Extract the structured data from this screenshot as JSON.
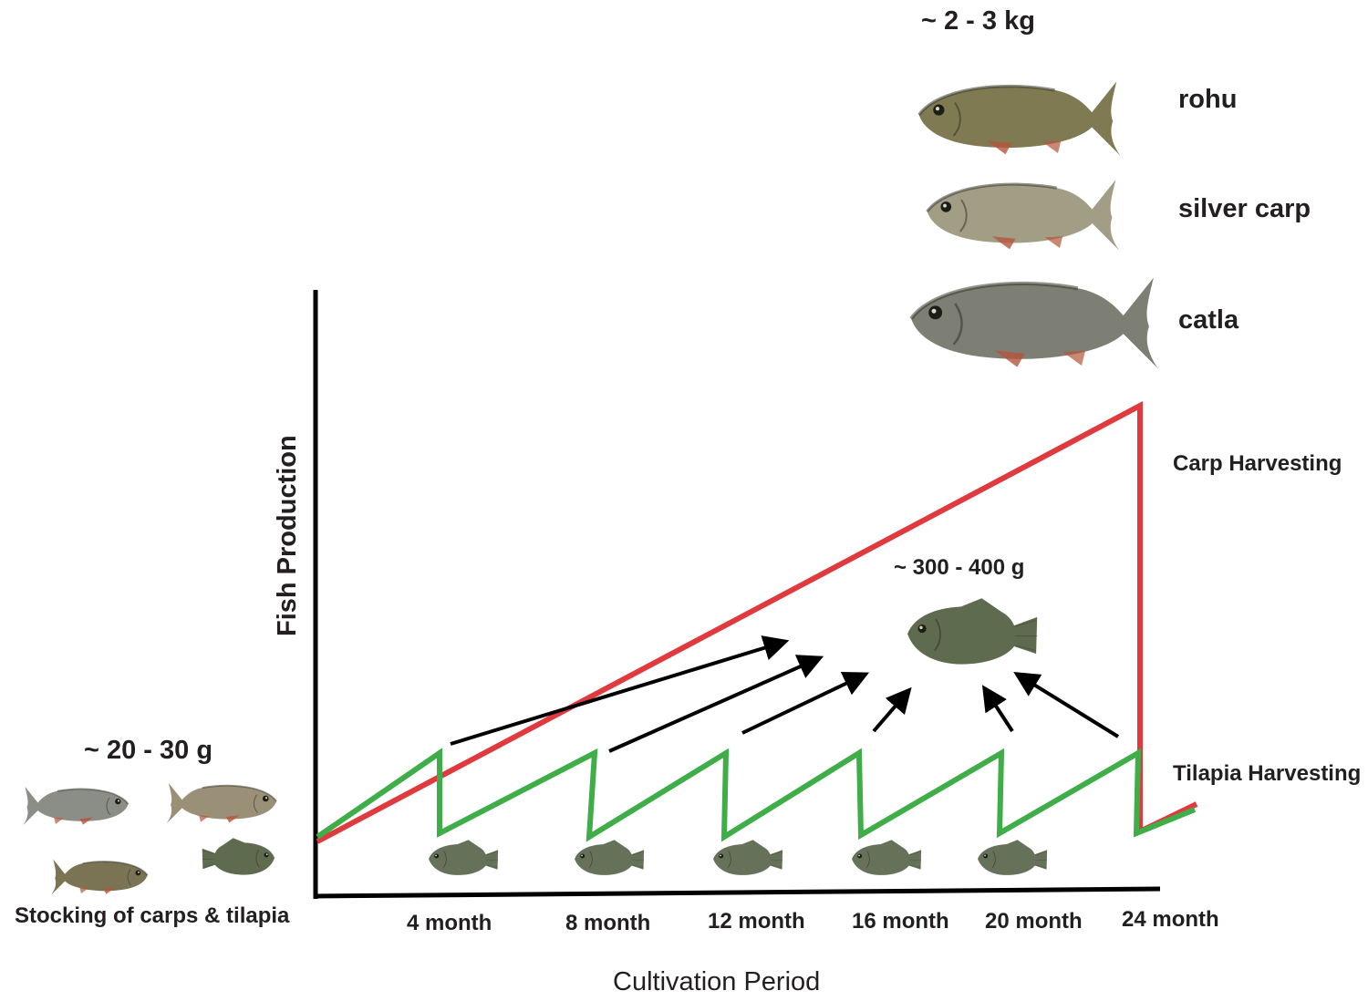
{
  "top_weight": "~ 2 - 3 kg",
  "carp_species": [
    "rohu",
    "silver carp",
    "catla"
  ],
  "carp_harvest_label": "Carp Harvesting",
  "tilapia_harvest_label": "Tilapia Harvesting",
  "tilapia_weight": "~ 300 - 400 g",
  "stocking_weight": "~ 20 - 30  g",
  "stocking_label": "Stocking of carps & tilapia",
  "y_axis_label": "Fish Production",
  "x_axis_label": "Cultivation Period",
  "months": [
    "4 month",
    "8 month",
    "12 month",
    "16 month",
    "20 month",
    "24 month"
  ],
  "colors": {
    "carp_line": "#e03a3e",
    "tilapia_line": "#3fae49",
    "axis": "#000000",
    "arrow": "#000000",
    "carp_body": "#8a8a6e",
    "silver_body": "#a9a89a",
    "tilapia_body": "#6e7a5e"
  },
  "icons": {
    "rohu": "fish-rohu-icon",
    "silver_carp": "fish-silver-carp-icon",
    "catla": "fish-catla-icon",
    "tilapia": "fish-tilapia-icon"
  }
}
